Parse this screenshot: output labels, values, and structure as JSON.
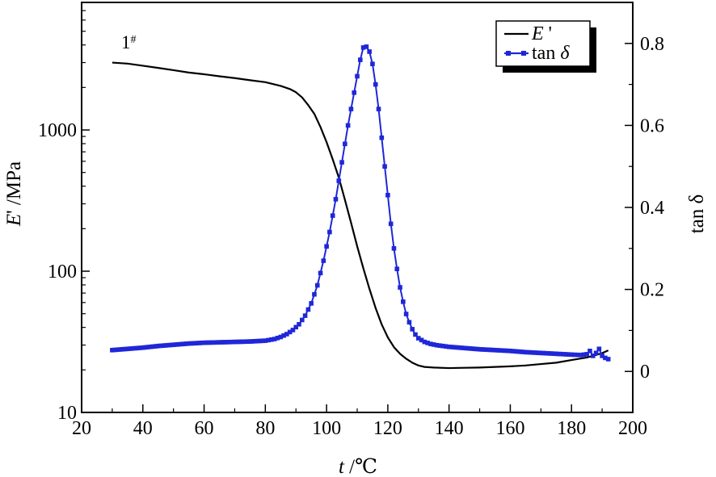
{
  "chart_data": {
    "type": "line",
    "annotation": "1#",
    "annotation_base": "1",
    "annotation_sup": "#",
    "x_axis": {
      "label_italic": "t",
      "label_rest": " /℃",
      "range": [
        20,
        200
      ],
      "ticks": [
        20,
        40,
        60,
        80,
        100,
        120,
        140,
        160,
        180,
        200
      ]
    },
    "y_left": {
      "label_italic": "E",
      "label_rest": "' /MPa",
      "scale": "log",
      "range": [
        10,
        8000
      ],
      "ticks": [
        10,
        100,
        1000
      ],
      "tick_labels": [
        "10",
        "100",
        "1000"
      ]
    },
    "y_right": {
      "label": "tan δ",
      "range": [
        -0.1,
        0.9
      ],
      "ticks": [
        0,
        0.2,
        0.4,
        0.6,
        0.8
      ],
      "tick_labels": [
        "0",
        "0.2",
        "0.4",
        "0.6",
        "0.8"
      ]
    },
    "legend": {
      "placement": "top-right",
      "items": [
        {
          "label_italic": "E",
          "label_rest": " '"
        },
        {
          "label_plain": "tan ",
          "label_italic": "δ"
        }
      ]
    },
    "series": [
      {
        "name": "E'",
        "axis": "left",
        "color": "#000000",
        "style": "line",
        "x": [
          30,
          35,
          40,
          45,
          50,
          55,
          60,
          65,
          70,
          75,
          80,
          85,
          88,
          90,
          92,
          94,
          96,
          98,
          100,
          102,
          104,
          106,
          108,
          110,
          112,
          114,
          116,
          118,
          120,
          122,
          124,
          126,
          128,
          130,
          132,
          135,
          140,
          145,
          150,
          155,
          160,
          165,
          170,
          175,
          180,
          185,
          188,
          190,
          192
        ],
        "y": [
          3000,
          2950,
          2850,
          2750,
          2650,
          2550,
          2480,
          2400,
          2330,
          2250,
          2180,
          2050,
          1950,
          1850,
          1700,
          1500,
          1300,
          1050,
          820,
          620,
          460,
          320,
          220,
          150,
          105,
          75,
          55,
          42,
          34,
          29,
          26,
          24,
          22.5,
          21.5,
          21,
          20.8,
          20.6,
          20.7,
          20.8,
          21,
          21.2,
          21.5,
          22,
          22.5,
          23.5,
          24.5,
          25.5,
          26.3,
          27.5
        ]
      },
      {
        "name": "tan δ",
        "axis": "right",
        "color": "#1f27d8",
        "style": "line-markers",
        "x": [
          30,
          35,
          40,
          45,
          50,
          55,
          60,
          65,
          70,
          75,
          80,
          83,
          85,
          87,
          89,
          91,
          93,
          95,
          97,
          99,
          101,
          103,
          105,
          107,
          109,
          110,
          111,
          112,
          113,
          114,
          115,
          116,
          117,
          118,
          119,
          120,
          121,
          122,
          123,
          124,
          125,
          126,
          127,
          128,
          129,
          130,
          132,
          134,
          136,
          138,
          140,
          145,
          150,
          155,
          160,
          165,
          170,
          175,
          180,
          183,
          185,
          186,
          187,
          188,
          189,
          190,
          191,
          192
        ],
        "y": [
          0.052,
          0.055,
          0.058,
          0.062,
          0.065,
          0.068,
          0.07,
          0.071,
          0.072,
          0.073,
          0.075,
          0.079,
          0.084,
          0.091,
          0.101,
          0.115,
          0.136,
          0.166,
          0.21,
          0.27,
          0.34,
          0.42,
          0.51,
          0.6,
          0.68,
          0.72,
          0.76,
          0.79,
          0.792,
          0.78,
          0.75,
          0.7,
          0.64,
          0.57,
          0.5,
          0.43,
          0.36,
          0.3,
          0.25,
          0.205,
          0.17,
          0.14,
          0.12,
          0.103,
          0.09,
          0.081,
          0.072,
          0.067,
          0.064,
          0.062,
          0.06,
          0.057,
          0.054,
          0.052,
          0.05,
          0.047,
          0.045,
          0.043,
          0.041,
          0.04,
          0.042,
          0.05,
          0.038,
          0.045,
          0.055,
          0.038,
          0.033,
          0.03
        ]
      }
    ]
  }
}
